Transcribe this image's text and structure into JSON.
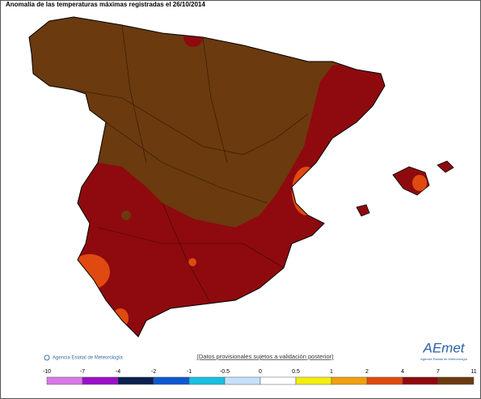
{
  "title": "Anomalía de las temperaturas máximas registradas el 26/10/2014",
  "credit": "Agencia Estatal de Meteorología",
  "note": "(Datos provisionales sujetos a validación posterior)",
  "logo": {
    "name": "AEmet",
    "subtitle": "Agencia Estatal de Meteorología"
  },
  "legend": {
    "ticks": [
      -10,
      -7,
      -4,
      -2,
      -1,
      -0.5,
      0,
      0.5,
      1,
      2,
      4,
      7,
      11
    ],
    "colors": [
      "#d878e8",
      "#9a10c8",
      "#0c1f4e",
      "#1058d0",
      "#18c0e0",
      "#c6e2fa",
      "#ffffff",
      "#f4ee10",
      "#f0a010",
      "#e04a10",
      "#8e0a0e",
      "#6b3a0e"
    ]
  }
}
